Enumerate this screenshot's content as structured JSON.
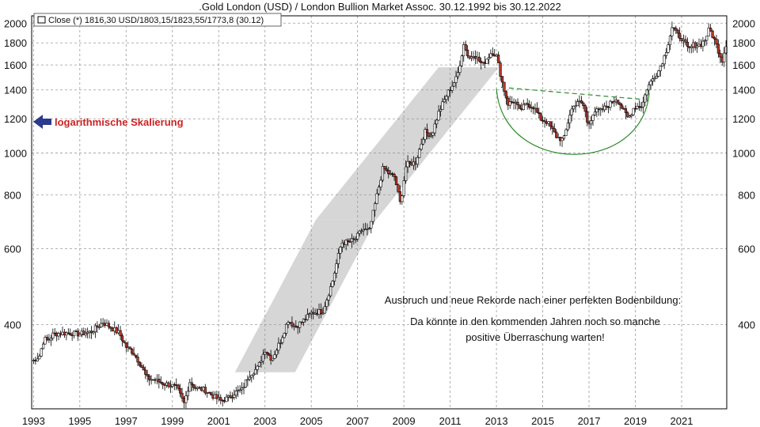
{
  "chart_data": {
    "type": "candlestick",
    "title": ".Gold London (USD) / London Bullion Market Assoc. 30.12.1992 bis 30.12.2022",
    "legend": {
      "label": "Close (*) 1816,30 USD/1803,15/1823,55/1773,8 (30.12)",
      "placement": "top-left"
    },
    "scale": "logarithmic",
    "ylim": [
      255,
      2080
    ],
    "xlim": [
      1992.92,
      2022.95
    ],
    "y_ticks": [
      400,
      600,
      800,
      1000,
      1200,
      1400,
      1600,
      1800,
      2000
    ],
    "y_tick_labels": [
      "400",
      "600",
      "800",
      "1000",
      "1200",
      "1400",
      "1600",
      "1800",
      "2000"
    ],
    "x_ticks": [
      1993,
      1995,
      1997,
      1999,
      2001,
      2003,
      2005,
      2007,
      2009,
      2011,
      2013,
      2015,
      2017,
      2019,
      2021
    ],
    "x_tick_labels": [
      "1993",
      "1995",
      "1997",
      "1999",
      "2001",
      "2003",
      "2005",
      "2007",
      "2009",
      "2011",
      "2013",
      "2015",
      "2017",
      "2019",
      "2021"
    ],
    "grid": true,
    "series": [
      {
        "name": "Gold London (USD) monthly",
        "points": [
          [
            1993.0,
            330
          ],
          [
            1993.25,
            338
          ],
          [
            1993.45,
            370
          ],
          [
            1993.65,
            368
          ],
          [
            1993.85,
            380
          ],
          [
            1994.2,
            382
          ],
          [
            1994.6,
            382
          ],
          [
            1995.0,
            380
          ],
          [
            1995.5,
            385
          ],
          [
            1996.0,
            405
          ],
          [
            1996.3,
            395
          ],
          [
            1996.7,
            382
          ],
          [
            1997.0,
            355
          ],
          [
            1997.3,
            345
          ],
          [
            1997.6,
            325
          ],
          [
            1997.9,
            300
          ],
          [
            1998.2,
            298
          ],
          [
            1998.6,
            292
          ],
          [
            1998.9,
            290
          ],
          [
            1999.2,
            285
          ],
          [
            1999.5,
            262
          ],
          [
            1999.75,
            295
          ],
          [
            2000.0,
            285
          ],
          [
            2000.4,
            282
          ],
          [
            2000.8,
            272
          ],
          [
            2001.1,
            266
          ],
          [
            2001.4,
            270
          ],
          [
            2001.7,
            278
          ],
          [
            2002.0,
            282
          ],
          [
            2002.3,
            305
          ],
          [
            2002.7,
            318
          ],
          [
            2003.0,
            350
          ],
          [
            2003.3,
            332
          ],
          [
            2003.7,
            370
          ],
          [
            2004.0,
            410
          ],
          [
            2004.3,
            395
          ],
          [
            2004.7,
            410
          ],
          [
            2005.0,
            425
          ],
          [
            2005.5,
            430
          ],
          [
            2005.9,
            500
          ],
          [
            2006.3,
            620
          ],
          [
            2006.6,
            620
          ],
          [
            2006.9,
            630
          ],
          [
            2007.2,
            665
          ],
          [
            2007.5,
            660
          ],
          [
            2007.8,
            780
          ],
          [
            2008.1,
            925
          ],
          [
            2008.4,
            890
          ],
          [
            2008.6,
            880
          ],
          [
            2008.85,
            760
          ],
          [
            2009.1,
            940
          ],
          [
            2009.5,
            950
          ],
          [
            2009.9,
            1120
          ],
          [
            2010.2,
            1100
          ],
          [
            2010.5,
            1240
          ],
          [
            2010.9,
            1380
          ],
          [
            2011.3,
            1500
          ],
          [
            2011.6,
            1800
          ],
          [
            2011.8,
            1650
          ],
          [
            2012.0,
            1700
          ],
          [
            2012.4,
            1600
          ],
          [
            2012.8,
            1720
          ],
          [
            2013.0,
            1680
          ],
          [
            2013.3,
            1420
          ],
          [
            2013.5,
            1300
          ],
          [
            2013.8,
            1320
          ],
          [
            2014.0,
            1250
          ],
          [
            2014.3,
            1300
          ],
          [
            2014.6,
            1280
          ],
          [
            2014.9,
            1200
          ],
          [
            2015.2,
            1180
          ],
          [
            2015.6,
            1090
          ],
          [
            2015.9,
            1070
          ],
          [
            2016.2,
            1250
          ],
          [
            2016.5,
            1320
          ],
          [
            2016.8,
            1280
          ],
          [
            2016.95,
            1150
          ],
          [
            2017.2,
            1250
          ],
          [
            2017.5,
            1250
          ],
          [
            2017.9,
            1300
          ],
          [
            2018.2,
            1340
          ],
          [
            2018.5,
            1250
          ],
          [
            2018.7,
            1200
          ],
          [
            2018.95,
            1280
          ],
          [
            2019.3,
            1290
          ],
          [
            2019.5,
            1410
          ],
          [
            2019.8,
            1500
          ],
          [
            2020.0,
            1550
          ],
          [
            2020.3,
            1700
          ],
          [
            2020.6,
            1970
          ],
          [
            2020.8,
            1880
          ],
          [
            2021.0,
            1850
          ],
          [
            2021.3,
            1730
          ],
          [
            2021.5,
            1780
          ],
          [
            2021.8,
            1780
          ],
          [
            2022.0,
            1830
          ],
          [
            2022.2,
            1940
          ],
          [
            2022.4,
            1840
          ],
          [
            2022.6,
            1720
          ],
          [
            2022.75,
            1640
          ],
          [
            2022.95,
            1816
          ]
        ]
      }
    ],
    "annotations": {
      "arrow_label": "logarithmische Skalierung",
      "text_line1": "Ausbruch und neue Rekorde nach einer perfekten Bodenbildung:",
      "text_line2": "Da könnte in den kommenden Jahren noch so manche",
      "text_line3": "positive Überraschung warten!",
      "trend_channel_1": {
        "from": [
          2003.0,
          310
        ],
        "to": [
          2006.5,
          700
        ]
      },
      "trend_channel_2": {
        "from": [
          2006.5,
          700
        ],
        "to": [
          2011.8,
          1580
        ]
      },
      "cup_left": [
        2013.0,
        1410
      ],
      "cup_right": [
        2019.6,
        1380
      ],
      "cup_bottom": 940,
      "neckline": {
        "from": [
          2013.2,
          1420
        ],
        "to": [
          2019.4,
          1330
        ]
      }
    },
    "colors": {
      "bull_candle": "#ffffff",
      "bear_candle": "#b83a2a",
      "wick": "#000000",
      "grid": "#9a9a9a",
      "channel": "#d6d6d6",
      "cup": "#2e8b2e",
      "arrow": "#2b3a8f",
      "annotation_red": "#cc2222",
      "text": "#111111"
    }
  }
}
